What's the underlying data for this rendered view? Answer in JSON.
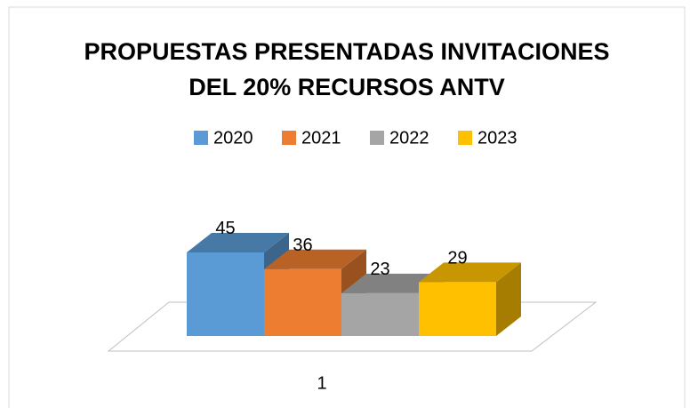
{
  "chart_data": {
    "type": "bar3d",
    "title": "PROPUESTAS PRESENTADAS INVITACIONES DEL 20% RECURSOS ANTV",
    "categories": [
      "1"
    ],
    "series": [
      {
        "name": "2020",
        "color": "#5b9bd5",
        "values": [
          45
        ]
      },
      {
        "name": "2021",
        "color": "#ed7d31",
        "values": [
          36
        ]
      },
      {
        "name": "2022",
        "color": "#a5a5a5",
        "values": [
          23
        ]
      },
      {
        "name": "2023",
        "color": "#ffc000",
        "values": [
          29
        ]
      }
    ],
    "legend": "top"
  }
}
